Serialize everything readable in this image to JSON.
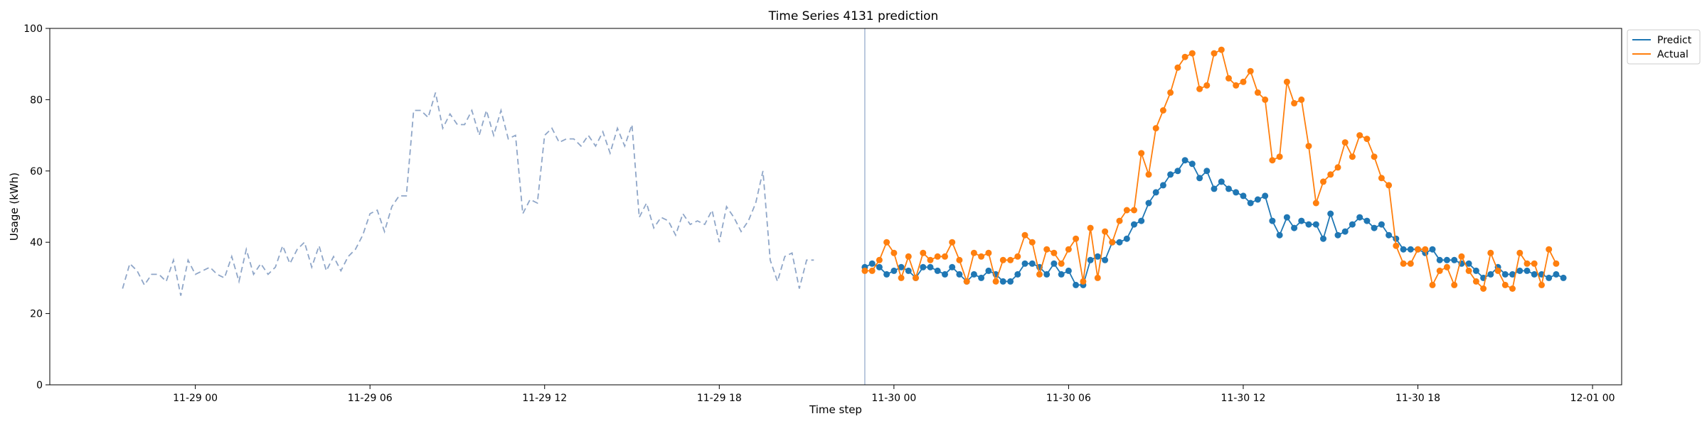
{
  "chart_data": {
    "type": "line",
    "title": "Time Series 4131 prediction",
    "xlabel": "Time step",
    "ylabel": "Usage (kWh)",
    "ylim": [
      0,
      100
    ],
    "yticks": [
      0,
      20,
      40,
      60,
      80,
      100
    ],
    "xlim": [
      "2024-11-28 19:00",
      "2024-12-01 01:00"
    ],
    "xticks": [
      {
        "t": "2024-11-29 00:00",
        "label": "11-29 00"
      },
      {
        "t": "2024-11-29 06:00",
        "label": "11-29 06"
      },
      {
        "t": "2024-11-29 12:00",
        "label": "11-29 12"
      },
      {
        "t": "2024-11-29 18:00",
        "label": "11-29 18"
      },
      {
        "t": "2024-11-30 00:00",
        "label": "11-30 00"
      },
      {
        "t": "2024-11-30 06:00",
        "label": "11-30 06"
      },
      {
        "t": "2024-11-30 12:00",
        "label": "11-30 12"
      },
      {
        "t": "2024-11-30 18:00",
        "label": "11-30 18"
      },
      {
        "t": "2024-12-01 00:00",
        "label": "12-01 00"
      }
    ],
    "interval_minutes": 15,
    "legend_position": "outside-top-right",
    "forecast_start": "2024-11-29 23:00",
    "history": {
      "start": "2024-11-28 21:30",
      "color": "#8fa6c8",
      "style": "dashed",
      "values": [
        27,
        34,
        32,
        28,
        31,
        31,
        29,
        35,
        25,
        35,
        31,
        32,
        33,
        31,
        30,
        36,
        29,
        38,
        31,
        34,
        31,
        33,
        39,
        34,
        38,
        40,
        33,
        39,
        32,
        36,
        32,
        36,
        38,
        42,
        48,
        49,
        43,
        50,
        53,
        53,
        77,
        77,
        75,
        82,
        72,
        76,
        73,
        73,
        77,
        70,
        77,
        70,
        77,
        69,
        70,
        48,
        52,
        51,
        70,
        72,
        68,
        69,
        69,
        67,
        70,
        67,
        71,
        65,
        72,
        67,
        73,
        47,
        51,
        44,
        47,
        46,
        42,
        48,
        45,
        46,
        45,
        49,
        40,
        50,
        47,
        43,
        46,
        51,
        60,
        35,
        29,
        36,
        37,
        27,
        35,
        35
      ]
    },
    "series": [
      {
        "name": "Predict",
        "color": "#1f77b4",
        "start": "2024-11-29 23:00",
        "values": [
          33,
          34,
          33,
          31,
          32,
          33,
          32,
          30,
          33,
          33,
          32,
          31,
          33,
          31,
          29,
          31,
          30,
          32,
          31,
          29,
          29,
          31,
          34,
          34,
          33,
          31,
          34,
          31,
          32,
          28,
          28,
          35,
          36,
          35,
          40,
          40,
          41,
          45,
          46,
          51,
          54,
          56,
          59,
          60,
          63,
          62,
          58,
          60,
          55,
          57,
          55,
          54,
          53,
          51,
          52,
          53,
          46,
          42,
          47,
          44,
          46,
          45,
          45,
          41,
          48,
          42,
          43,
          45,
          47,
          46,
          44,
          45,
          42,
          41,
          38,
          38,
          38,
          37,
          38,
          35,
          35,
          35,
          34,
          34,
          32,
          30,
          31,
          33,
          31,
          31,
          32,
          32,
          31,
          31,
          30,
          31,
          30
        ]
      },
      {
        "name": "Actual",
        "color": "#ff7f0e",
        "start": "2024-11-29 23:00",
        "values": [
          32,
          32,
          35,
          40,
          37,
          30,
          36,
          30,
          37,
          35,
          36,
          36,
          40,
          35,
          29,
          37,
          36,
          37,
          29,
          35,
          35,
          36,
          42,
          40,
          31,
          38,
          37,
          34,
          38,
          41,
          29,
          44,
          30,
          43,
          40,
          46,
          49,
          49,
          65,
          59,
          72,
          77,
          82,
          89,
          92,
          93,
          83,
          84,
          93,
          94,
          86,
          84,
          85,
          88,
          82,
          80,
          63,
          64,
          85,
          79,
          80,
          67,
          51,
          57,
          59,
          61,
          68,
          64,
          70,
          69,
          64,
          58,
          56,
          39,
          34,
          34,
          38,
          38,
          28,
          32,
          33,
          28,
          36,
          32,
          29,
          27,
          37,
          32,
          28,
          27,
          37,
          34,
          34,
          28,
          38,
          34
        ]
      }
    ]
  }
}
